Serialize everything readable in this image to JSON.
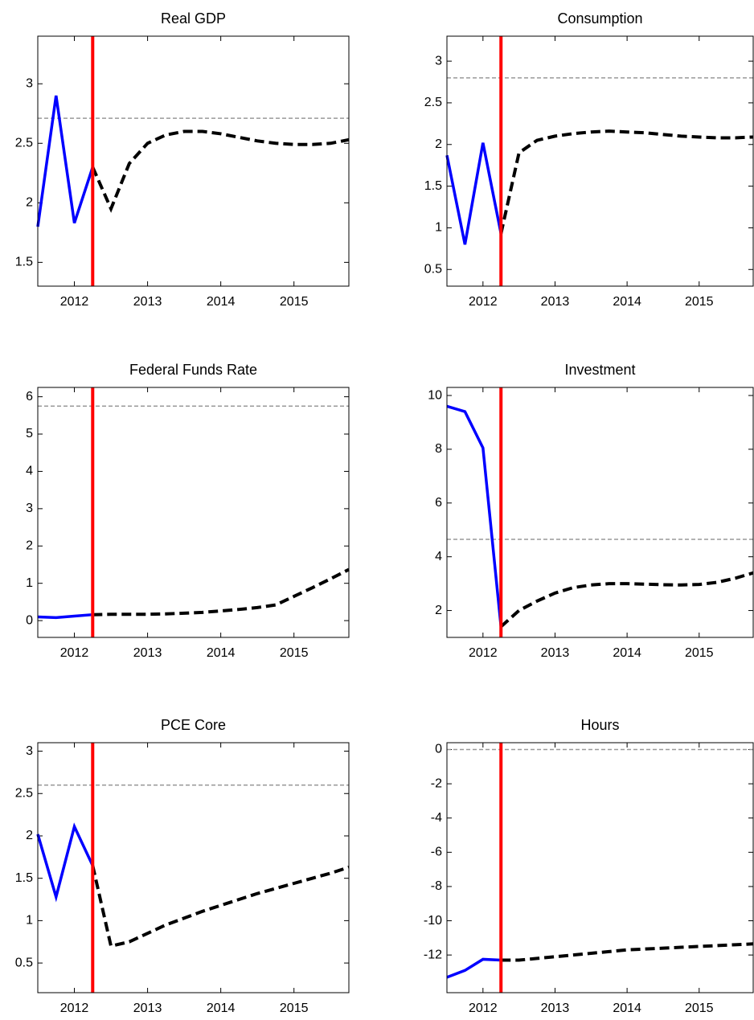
{
  "chart_data": [
    {
      "type": "line",
      "title": "Real GDP",
      "xlim": [
        2011.5,
        2015.75
      ],
      "xticks": [
        2012,
        2013,
        2014,
        2015
      ],
      "ylim": [
        1.3,
        3.4
      ],
      "yticks": [
        1.5,
        2,
        2.5,
        3
      ],
      "vline": 2012.25,
      "vline_color": "#ff0000",
      "hline": 2.71,
      "hline_color": "#999999",
      "series": [
        {
          "color": "#0000ff",
          "style": "solid",
          "x": [
            2011.5,
            2011.75,
            2012,
            2012.25
          ],
          "values": [
            1.8,
            2.9,
            1.83,
            2.3
          ]
        },
        {
          "color": "#000000",
          "style": "dashed",
          "x": [
            2012.25,
            2012.5,
            2012.75,
            2013,
            2013.25,
            2013.5,
            2013.75,
            2014,
            2014.25,
            2014.5,
            2014.75,
            2015,
            2015.25,
            2015.5,
            2015.75
          ],
          "values": [
            2.3,
            1.95,
            2.33,
            2.5,
            2.57,
            2.6,
            2.6,
            2.58,
            2.55,
            2.52,
            2.5,
            2.49,
            2.49,
            2.5,
            2.53
          ]
        }
      ]
    },
    {
      "type": "line",
      "title": "Consumption",
      "xlim": [
        2011.5,
        2015.75
      ],
      "xticks": [
        2012,
        2013,
        2014,
        2015
      ],
      "ylim": [
        0.3,
        3.3
      ],
      "yticks": [
        0.5,
        1,
        1.5,
        2,
        2.5,
        3
      ],
      "vline": 2012.25,
      "vline_color": "#ff0000",
      "hline": 2.8,
      "hline_color": "#999999",
      "series": [
        {
          "color": "#0000ff",
          "style": "solid",
          "x": [
            2011.5,
            2011.75,
            2012,
            2012.25
          ],
          "values": [
            1.87,
            0.8,
            2.02,
            0.93
          ]
        },
        {
          "color": "#000000",
          "style": "dashed",
          "x": [
            2012.25,
            2012.5,
            2012.75,
            2013,
            2013.25,
            2013.5,
            2013.75,
            2014,
            2014.25,
            2014.5,
            2014.75,
            2015,
            2015.25,
            2015.5,
            2015.75
          ],
          "values": [
            0.93,
            1.9,
            2.05,
            2.1,
            2.13,
            2.15,
            2.16,
            2.15,
            2.14,
            2.12,
            2.1,
            2.09,
            2.08,
            2.08,
            2.09
          ]
        }
      ]
    },
    {
      "type": "line",
      "title": "Federal Funds Rate",
      "xlim": [
        2011.5,
        2015.75
      ],
      "xticks": [
        2012,
        2013,
        2014,
        2015
      ],
      "ylim": [
        -0.45,
        6.25
      ],
      "yticks": [
        0,
        1,
        2,
        3,
        4,
        5,
        6
      ],
      "vline": 2012.25,
      "vline_color": "#ff0000",
      "hline": 5.75,
      "hline_color": "#999999",
      "series": [
        {
          "color": "#0000ff",
          "style": "solid",
          "x": [
            2011.5,
            2011.75,
            2012,
            2012.25
          ],
          "values": [
            0.1,
            0.08,
            0.12,
            0.16
          ]
        },
        {
          "color": "#000000",
          "style": "dashed",
          "x": [
            2012.25,
            2012.5,
            2012.75,
            2013,
            2013.25,
            2013.5,
            2013.75,
            2014,
            2014.25,
            2014.5,
            2014.75,
            2015,
            2015.25,
            2015.5,
            2015.75
          ],
          "values": [
            0.16,
            0.17,
            0.17,
            0.17,
            0.18,
            0.2,
            0.22,
            0.26,
            0.3,
            0.35,
            0.42,
            0.65,
            0.88,
            1.12,
            1.37
          ]
        }
      ]
    },
    {
      "type": "line",
      "title": "Investment",
      "xlim": [
        2011.5,
        2015.75
      ],
      "xticks": [
        2012,
        2013,
        2014,
        2015
      ],
      "ylim": [
        1,
        10.3
      ],
      "yticks": [
        2,
        4,
        6,
        8,
        10
      ],
      "vline": 2012.25,
      "vline_color": "#ff0000",
      "hline": 4.65,
      "hline_color": "#999999",
      "series": [
        {
          "color": "#0000ff",
          "style": "solid",
          "x": [
            2011.5,
            2011.75,
            2012,
            2012.25
          ],
          "values": [
            9.6,
            9.4,
            8.05,
            1.4
          ]
        },
        {
          "color": "#000000",
          "style": "dashed",
          "x": [
            2012.25,
            2012.5,
            2012.75,
            2013,
            2013.25,
            2013.5,
            2013.75,
            2014,
            2014.25,
            2014.5,
            2014.75,
            2015,
            2015.25,
            2015.5,
            2015.75
          ],
          "values": [
            1.4,
            2.0,
            2.35,
            2.65,
            2.85,
            2.95,
            3.0,
            3.0,
            2.98,
            2.96,
            2.95,
            2.97,
            3.05,
            3.2,
            3.4
          ]
        }
      ]
    },
    {
      "type": "line",
      "title": "PCE Core",
      "xlim": [
        2011.5,
        2015.75
      ],
      "xticks": [
        2012,
        2013,
        2014,
        2015
      ],
      "ylim": [
        0.15,
        3.1
      ],
      "yticks": [
        0.5,
        1,
        1.5,
        2,
        2.5,
        3
      ],
      "vline": 2012.25,
      "vline_color": "#ff0000",
      "hline": 2.6,
      "hline_color": "#999999",
      "series": [
        {
          "color": "#0000ff",
          "style": "solid",
          "x": [
            2011.5,
            2011.75,
            2012,
            2012.25
          ],
          "values": [
            2.02,
            1.28,
            2.11,
            1.65
          ]
        },
        {
          "color": "#000000",
          "style": "dashed",
          "x": [
            2012.25,
            2012.5,
            2012.75,
            2013,
            2013.25,
            2013.5,
            2013.75,
            2014,
            2014.25,
            2014.5,
            2014.75,
            2015,
            2015.25,
            2015.5,
            2015.75
          ],
          "values": [
            1.65,
            0.7,
            0.75,
            0.85,
            0.95,
            1.03,
            1.11,
            1.18,
            1.25,
            1.32,
            1.38,
            1.44,
            1.5,
            1.56,
            1.63
          ]
        }
      ]
    },
    {
      "type": "line",
      "title": "Hours",
      "xlim": [
        2011.5,
        2015.75
      ],
      "xticks": [
        2012,
        2013,
        2014,
        2015
      ],
      "ylim": [
        -14.2,
        0.4
      ],
      "yticks": [
        -12,
        -10,
        -8,
        -6,
        -4,
        -2,
        0
      ],
      "vline": 2012.25,
      "vline_color": "#ff0000",
      "hline": 0,
      "hline_color": "#999999",
      "series": [
        {
          "color": "#0000ff",
          "style": "solid",
          "x": [
            2011.5,
            2011.75,
            2012,
            2012.25
          ],
          "values": [
            -13.3,
            -12.9,
            -12.25,
            -12.3
          ]
        },
        {
          "color": "#000000",
          "style": "dashed",
          "x": [
            2012.25,
            2012.5,
            2012.75,
            2013,
            2013.25,
            2013.5,
            2013.75,
            2014,
            2014.25,
            2014.5,
            2014.75,
            2015,
            2015.25,
            2015.5,
            2015.75
          ],
          "values": [
            -12.3,
            -12.3,
            -12.2,
            -12.1,
            -12.0,
            -11.9,
            -11.8,
            -11.7,
            -11.65,
            -11.6,
            -11.55,
            -11.5,
            -11.45,
            -11.4,
            -11.35
          ]
        }
      ]
    }
  ]
}
